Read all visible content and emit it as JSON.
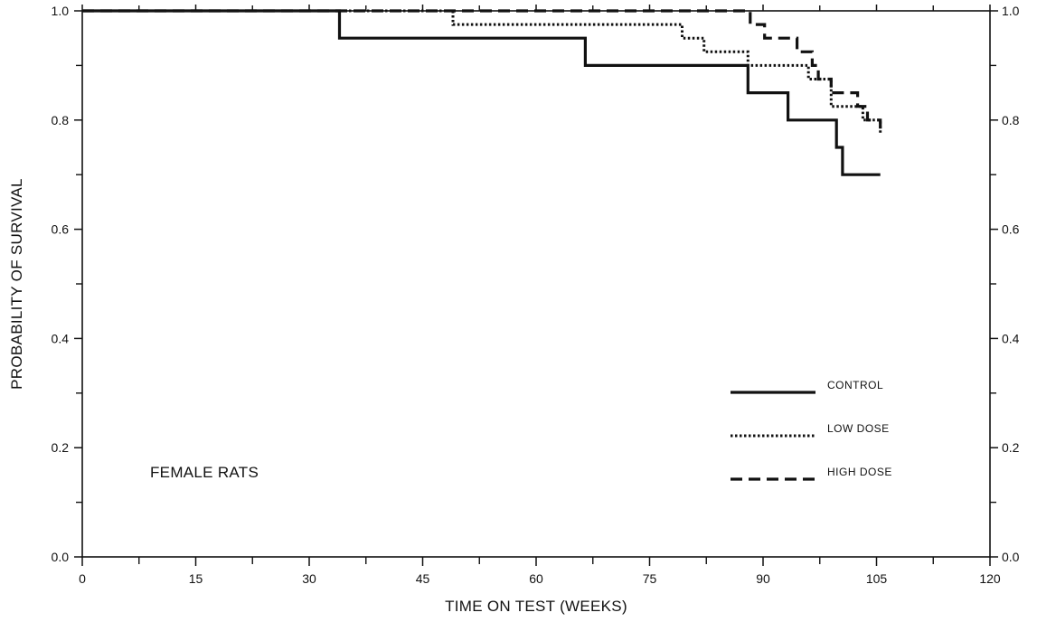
{
  "chart_data": {
    "type": "line",
    "subtype": "kaplan-meier step survival curves",
    "annotation": "FEMALE RATS",
    "xlabel": "TIME ON TEST (WEEKS)",
    "ylabel": "PROBABILITY OF SURVIVAL",
    "xlim": [
      0,
      120
    ],
    "ylim": [
      0.0,
      1.0
    ],
    "xticks_major": [
      0,
      15,
      30,
      45,
      60,
      75,
      90,
      105,
      120
    ],
    "xtick_labels": [
      "0",
      "15",
      "30",
      "45",
      "60",
      "75",
      "90",
      "105",
      "120"
    ],
    "yticks_major": [
      0.0,
      0.2,
      0.4,
      0.6,
      0.8,
      1.0
    ],
    "ytick_labels": [
      "0.0",
      "0.2",
      "0.4",
      "0.6",
      "0.8",
      "1.0"
    ],
    "grid": false,
    "right_axis_labels": true,
    "legend_position": "lower-right inside",
    "series": [
      {
        "name": "CONTROL",
        "style": "solid",
        "color": "#111111",
        "x": [
          0,
          34,
          66.5,
          88,
          93.3,
          99.7,
          100.5,
          105.5
        ],
        "y": [
          1.0,
          0.95,
          0.9,
          0.85,
          0.8,
          0.75,
          0.7,
          0.7
        ]
      },
      {
        "name": "LOW DOSE",
        "style": "dotted",
        "color": "#111111",
        "x": [
          0,
          49,
          79.3,
          82.2,
          88,
          96,
          99,
          103.2,
          105.5
        ],
        "y": [
          1.0,
          0.975,
          0.95,
          0.925,
          0.9,
          0.875,
          0.825,
          0.8,
          0.775
        ]
      },
      {
        "name": "HIGH DOSE",
        "style": "dashed",
        "color": "#111111",
        "x": [
          0,
          88.3,
          90.2,
          94.5,
          96.5,
          97.3,
          99,
          102.5,
          103.8,
          105.5
        ],
        "y": [
          1.0,
          0.975,
          0.95,
          0.925,
          0.9,
          0.875,
          0.85,
          0.825,
          0.8,
          0.775
        ]
      }
    ]
  }
}
